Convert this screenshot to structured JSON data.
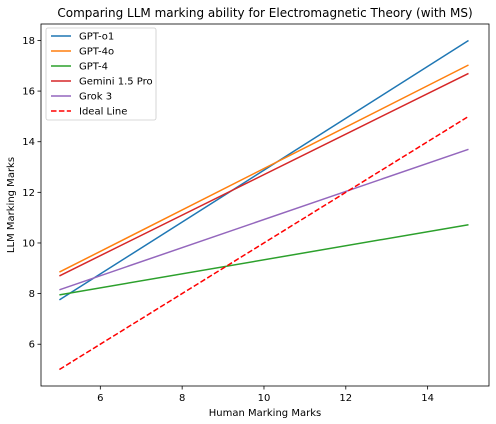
{
  "chart_data": {
    "type": "line",
    "title": "Comparing LLM marking ability for Electromagnetic Theory (with MS)",
    "xlabel": "Human Marking Marks",
    "ylabel": "LLM Marking Marks",
    "xlim": [
      4.55,
      15.5
    ],
    "ylim": [
      4.35,
      18.65
    ],
    "xticks": [
      6,
      8,
      10,
      12,
      14
    ],
    "yticks": [
      6,
      8,
      10,
      12,
      14,
      16,
      18
    ],
    "grid": false,
    "legend_position": "top-left",
    "series": [
      {
        "name": "GPT-o1",
        "color": "#1f77b4",
        "dash": "solid",
        "x": [
          5,
          15
        ],
        "y": [
          7.75,
          18.0
        ]
      },
      {
        "name": "GPT-4o",
        "color": "#ff7f0e",
        "dash": "solid",
        "x": [
          5,
          15
        ],
        "y": [
          8.85,
          17.03
        ]
      },
      {
        "name": "GPT-4",
        "color": "#2ca02c",
        "dash": "solid",
        "x": [
          5,
          15
        ],
        "y": [
          7.95,
          10.72
        ]
      },
      {
        "name": "Gemini 1.5 Pro",
        "color": "#d62728",
        "dash": "solid",
        "x": [
          5,
          15
        ],
        "y": [
          8.7,
          16.7
        ]
      },
      {
        "name": "Grok 3",
        "color": "#9467bd",
        "dash": "solid",
        "x": [
          5,
          15
        ],
        "y": [
          8.15,
          13.7
        ]
      },
      {
        "name": "Ideal Line",
        "color": "#ff0000",
        "dash": "dashed",
        "x": [
          5,
          15
        ],
        "y": [
          5,
          15
        ]
      }
    ]
  }
}
